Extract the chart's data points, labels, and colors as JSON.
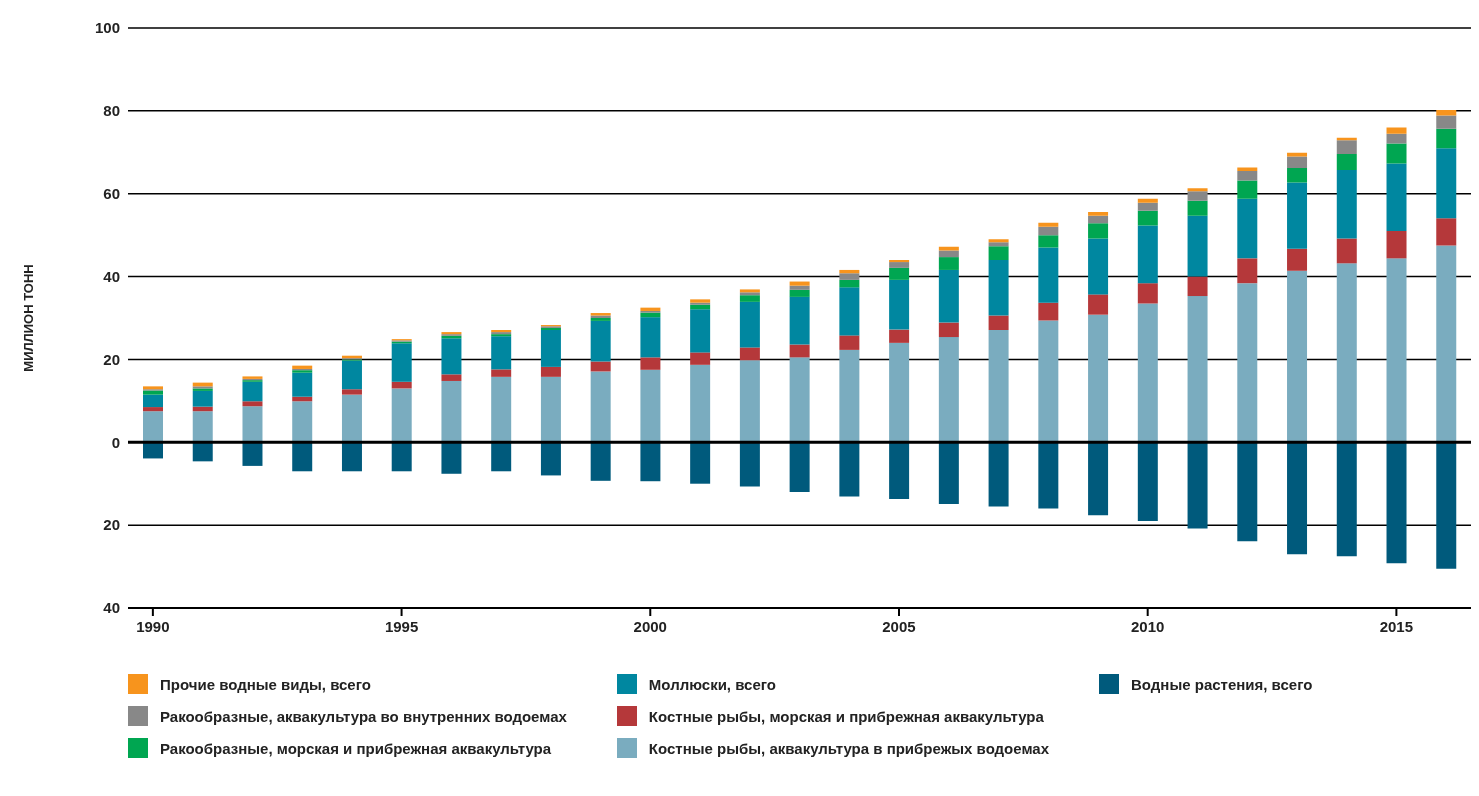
{
  "chart_data": {
    "type": "bar",
    "stacked": true,
    "ylabel": "МИЛЛИОН ТОНН",
    "categories": [
      "1990",
      null,
      null,
      null,
      null,
      "1995",
      null,
      null,
      null,
      null,
      "2000",
      null,
      null,
      null,
      null,
      "2005",
      null,
      null,
      null,
      null,
      "2010",
      null,
      null,
      null,
      null,
      "2015",
      null
    ],
    "series": [
      {
        "name": "Водные растения, всего",
        "color": "#005a7c",
        "values": [
          -3.9,
          -4.6,
          -5.7,
          -7.0,
          -7.0,
          -7.0,
          -7.6,
          -7.0,
          -8.0,
          -9.3,
          -9.4,
          -10.0,
          -10.7,
          -12.0,
          -13.1,
          -13.7,
          -14.9,
          -15.5,
          -16.0,
          -17.6,
          -19.0,
          -20.8,
          -23.9,
          -27.0,
          -27.5,
          -29.2,
          -30.5
        ]
      },
      {
        "name": "Костные рыбы, аквакультура в прибрежых водоемах",
        "color": "#7aacbf",
        "values": [
          7.5,
          7.5,
          8.7,
          9.9,
          11.5,
          13.0,
          14.8,
          15.8,
          15.8,
          17.1,
          17.5,
          18.7,
          19.8,
          20.5,
          22.3,
          24.0,
          25.4,
          27.1,
          29.4,
          30.8,
          33.5,
          35.3,
          38.4,
          41.4,
          43.2,
          44.4,
          47.5
        ]
      },
      {
        "name": "Костные рыбы, морская и прибрежная аквакультура",
        "color": "#b5383a",
        "values": [
          1.0,
          1.1,
          1.2,
          1.1,
          1.3,
          1.6,
          1.6,
          1.8,
          2.4,
          2.4,
          3.0,
          3.0,
          3.1,
          3.1,
          3.5,
          3.2,
          3.5,
          3.5,
          4.3,
          4.9,
          4.9,
          4.7,
          6.0,
          5.3,
          6.0,
          6.6,
          6.6
        ]
      },
      {
        "name": "Моллюски, всего",
        "color": "#0087a0",
        "values": [
          3.0,
          3.8,
          4.7,
          5.8,
          6.9,
          9.3,
          8.7,
          8.0,
          8.9,
          9.8,
          9.7,
          10.4,
          11.0,
          11.5,
          11.6,
          12.0,
          12.7,
          13.4,
          13.3,
          13.5,
          13.9,
          14.7,
          14.4,
          16.0,
          16.5,
          16.3,
          16.9
        ]
      },
      {
        "name": "Ракообразные, морская и прибрежная аквакультура",
        "color": "#00a651",
        "values": [
          1.0,
          0.6,
          0.4,
          0.6,
          0.3,
          0.4,
          0.6,
          0.5,
          0.5,
          0.7,
          1.1,
          1.1,
          1.6,
          1.7,
          1.8,
          2.9,
          3.1,
          3.3,
          3.0,
          3.7,
          3.6,
          3.6,
          4.4,
          3.5,
          3.9,
          4.8,
          4.7
        ]
      },
      {
        "name": "Ракообразные, аквакультура во внутренних водоемах",
        "color": "#888888",
        "values": [
          0.3,
          0.5,
          0.3,
          0.3,
          0.3,
          0.3,
          0.4,
          0.5,
          0.4,
          0.6,
          0.4,
          0.5,
          0.7,
          1.0,
          1.6,
          1.4,
          1.6,
          1.0,
          2.0,
          1.8,
          1.9,
          2.3,
          2.3,
          2.8,
          3.3,
          2.4,
          3.2
        ]
      },
      {
        "name": "Прочие водные виды, всего",
        "color": "#f7941d",
        "values": [
          0.7,
          0.9,
          0.6,
          0.8,
          0.6,
          0.3,
          0.5,
          0.5,
          0.3,
          0.6,
          0.8,
          0.8,
          0.7,
          1.0,
          0.8,
          0.5,
          0.9,
          0.7,
          1.0,
          0.9,
          1.0,
          0.7,
          0.8,
          0.9,
          0.6,
          1.5,
          1.3
        ]
      }
    ],
    "ylim": [
      -40,
      100
    ],
    "yticks": [
      {
        "value": -40,
        "label": "40"
      },
      {
        "value": -20,
        "label": "20"
      },
      0,
      20,
      40,
      60,
      80,
      100
    ],
    "grid": "y",
    "legend": "bottom"
  }
}
